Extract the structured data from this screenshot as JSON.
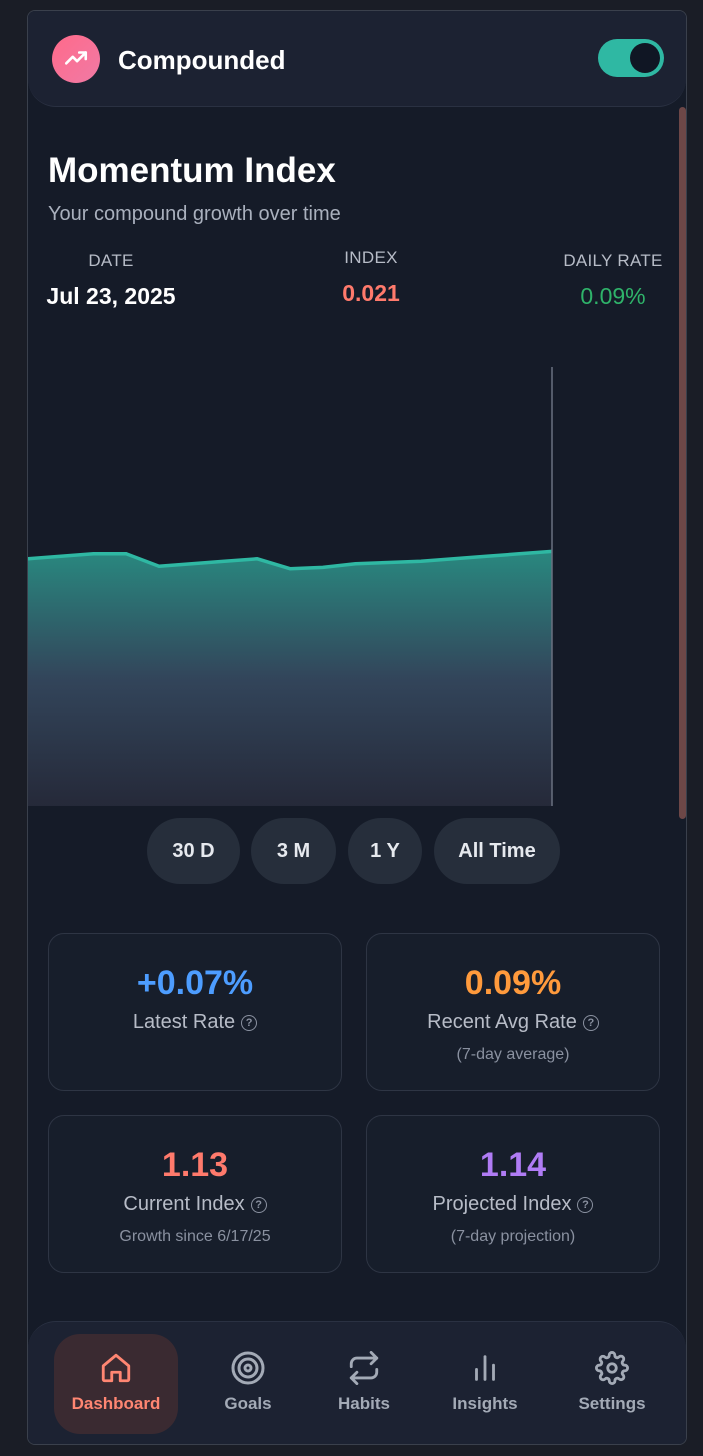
{
  "header": {
    "app_title": "Compounded",
    "logo_icon": "trending-up-icon",
    "toggle_on": true
  },
  "main": {
    "title": "Momentum Index",
    "subtitle": "Your compound growth over time",
    "stats": {
      "date_label": "DATE",
      "date_value": "Jul 23, 2025",
      "index_label": "INDEX",
      "index_value": "0.021",
      "rate_label": "DAILY RATE",
      "rate_value": "0.09%"
    }
  },
  "chart_data": {
    "type": "area",
    "series": [
      {
        "values": [
          1.0,
          1.01,
          1.02,
          1.02,
          0.97,
          0.98,
          0.99,
          1.0,
          0.96,
          0.965,
          0.98,
          0.985,
          0.99,
          1.0,
          1.01,
          1.02,
          1.03
        ]
      }
    ],
    "line_color": "#2fb8a3"
  },
  "ranges": [
    {
      "label": "30 D",
      "active": true
    },
    {
      "label": "3 M",
      "active": false
    },
    {
      "label": "1 Y",
      "active": false
    },
    {
      "label": "All Time",
      "active": false
    }
  ],
  "cards": [
    {
      "value": "+0.07%",
      "label": "Latest Rate",
      "note": "",
      "color": "#4d9dff"
    },
    {
      "value": "0.09%",
      "label": "Recent Avg Rate",
      "note": "(7-day average)",
      "color": "#ff9a3c"
    },
    {
      "value": "1.13",
      "label": "Current Index",
      "note": "Growth since 6/17/25",
      "color": "#ff7a6c"
    },
    {
      "value": "1.14",
      "label": "Projected Index",
      "note": "(7-day projection)",
      "color": "#b07cf5"
    }
  ],
  "help_glyph": "?",
  "nav": [
    {
      "label": "Dashboard",
      "icon": "home-icon",
      "active": true
    },
    {
      "label": "Goals",
      "icon": "target-icon",
      "active": false
    },
    {
      "label": "Habits",
      "icon": "repeat-icon",
      "active": false
    },
    {
      "label": "Insights",
      "icon": "bar-chart-icon",
      "active": false
    },
    {
      "label": "Settings",
      "icon": "gear-icon",
      "active": false
    }
  ]
}
